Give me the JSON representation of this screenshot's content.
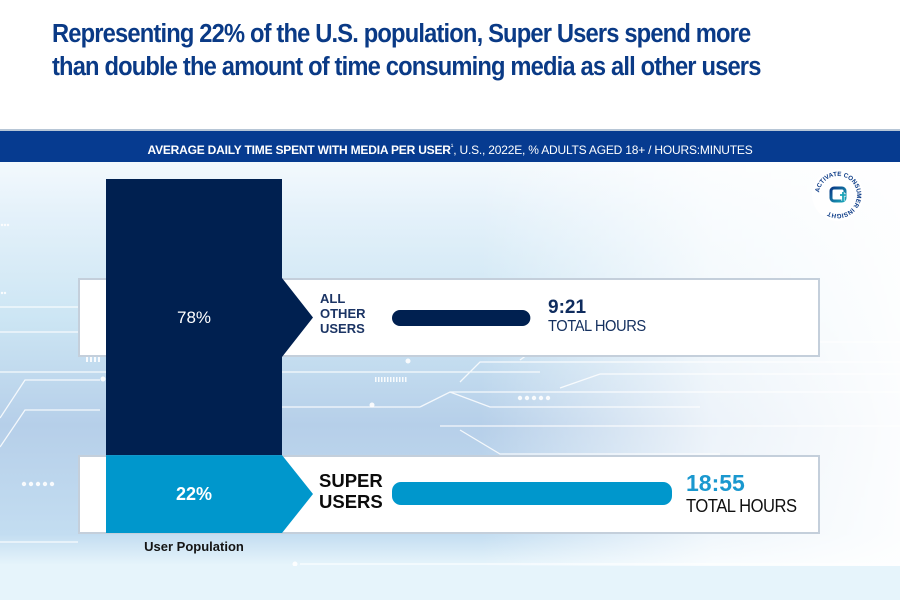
{
  "headline": {
    "line1": "Representing 22% of the U.S. population, Super Users spend more",
    "line2": "than double the amount of time consuming media as all other users"
  },
  "subtitle": {
    "bold": "AVERAGE DAILY TIME SPENT WITH MEDIA PER USER",
    "footnote_mark": "¹",
    "rest": ", U.S., 2022E, % ADULTS AGED 18+ / HOURS:MINUTES"
  },
  "badge": {
    "name": "Activate Consumer Insight",
    "ring_text": "ACTIVATE CONSUMER INSIGHT"
  },
  "colors": {
    "navy": "#002050",
    "sky": "#0097cc",
    "headline": "#0a3a86",
    "band": "#063b90"
  },
  "chart_data": {
    "type": "bar",
    "title": "Average daily time spent with media per user, U.S., 2022E, % adults aged 18+ / hours:minutes",
    "categories": [
      "All Other Users",
      "Super Users"
    ],
    "population_share_pct": [
      78,
      22
    ],
    "population_labels": [
      "78%",
      "22%"
    ],
    "time_labels": [
      "9:21",
      "18:55"
    ],
    "time_hours": [
      9.35,
      18.92
    ],
    "time_unit_label": "TOTAL HOURS",
    "segment_labels": [
      "ALL OTHER USERS",
      "SUPER USERS"
    ],
    "population_axis_label": "User Population",
    "series": [
      {
        "name": "User Population (%)",
        "values": [
          78,
          22
        ]
      },
      {
        "name": "Average Daily Time (hours)",
        "values": [
          9.35,
          18.92
        ]
      }
    ]
  },
  "labels": {
    "other_lines": [
      "ALL",
      "OTHER",
      "USERS"
    ],
    "super_lines": [
      "SUPER",
      "USERS"
    ]
  }
}
